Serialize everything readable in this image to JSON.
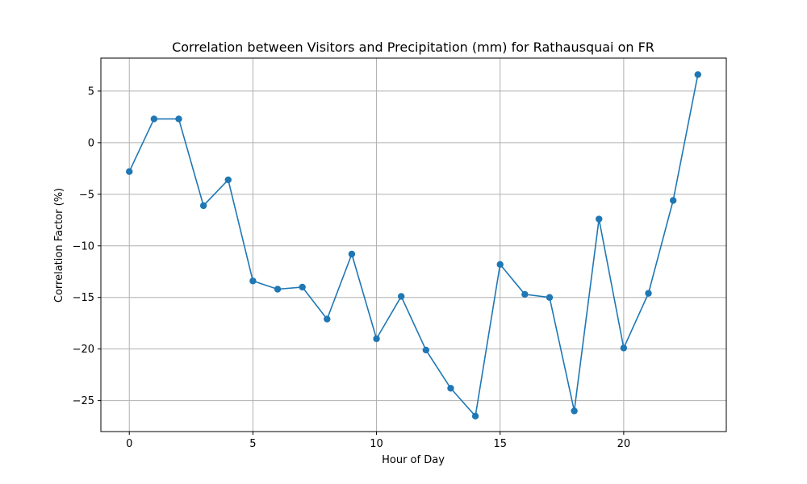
{
  "chart_data": {
    "type": "line",
    "title": "Correlation between Visitors and Precipitation (mm) for Rathausquai on FR",
    "xlabel": "Hour of Day",
    "ylabel": "Correlation Factor (%)",
    "xlim": [
      -1.15,
      24.15
    ],
    "ylim": [
      -28.0,
      8.2
    ],
    "xticks": [
      0,
      5,
      10,
      15,
      20
    ],
    "yticks": [
      5,
      0,
      -5,
      -10,
      -15,
      -20,
      -25
    ],
    "grid": true,
    "color": "#1f77b4",
    "marker": "circle",
    "x": [
      0,
      1,
      2,
      3,
      4,
      5,
      6,
      7,
      8,
      9,
      10,
      11,
      12,
      13,
      14,
      15,
      16,
      17,
      18,
      19,
      20,
      21,
      22,
      23
    ],
    "y": [
      -2.8,
      2.3,
      2.3,
      -6.1,
      -3.6,
      -13.4,
      -14.2,
      -14.0,
      -17.1,
      -10.8,
      -19.0,
      -14.9,
      -20.1,
      -23.8,
      -26.5,
      -11.8,
      -14.7,
      -15.0,
      -26.0,
      -7.4,
      -19.9,
      -14.6,
      -5.6,
      6.6
    ]
  }
}
